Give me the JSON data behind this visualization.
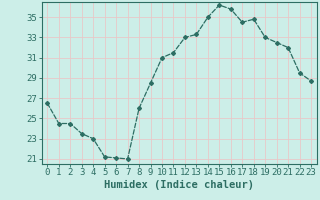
{
  "x": [
    0,
    1,
    2,
    3,
    4,
    5,
    6,
    7,
    8,
    9,
    10,
    11,
    12,
    13,
    14,
    15,
    16,
    17,
    18,
    19,
    20,
    21,
    22,
    23
  ],
  "y": [
    26.5,
    24.5,
    24.5,
    23.5,
    23.0,
    21.2,
    21.1,
    21.0,
    26.0,
    28.5,
    31.0,
    31.5,
    33.0,
    33.3,
    35.0,
    36.2,
    35.8,
    34.5,
    34.8,
    33.0,
    32.5,
    32.0,
    29.5,
    28.7
  ],
  "line_color": "#2d6e63",
  "marker": "D",
  "marker_size": 2,
  "bg_color": "#cceee8",
  "grid_color": "#e8c8c8",
  "xlabel": "Humidex (Indice chaleur)",
  "ylim_min": 20.5,
  "ylim_max": 36.5,
  "xlim_min": -0.5,
  "xlim_max": 23.5,
  "yticks": [
    21,
    23,
    25,
    27,
    29,
    31,
    33,
    35
  ],
  "xticks": [
    0,
    1,
    2,
    3,
    4,
    5,
    6,
    7,
    8,
    9,
    10,
    11,
    12,
    13,
    14,
    15,
    16,
    17,
    18,
    19,
    20,
    21,
    22,
    23
  ],
  "tick_color": "#2d6e63",
  "xlabel_fontsize": 7.5,
  "tick_fontsize": 6.5,
  "spine_color": "#2d6e63"
}
